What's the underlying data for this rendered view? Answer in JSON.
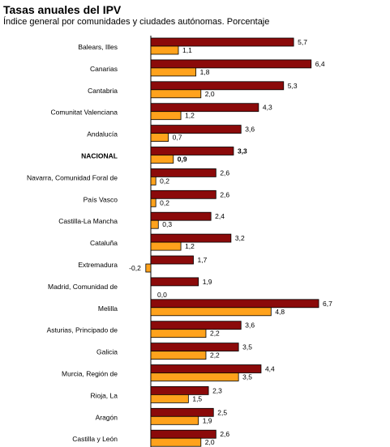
{
  "title": "Tasas anuales del IPV",
  "subtitle": "Índice general por comunidades y ciudades autónomas. Porcentaje",
  "colors": {
    "series1": "#8b0a0a",
    "series2": "#ffa21c"
  },
  "chart_data": {
    "type": "bar",
    "orientation": "horizontal",
    "categories": [
      "Balears, Illes",
      "Canarias",
      "Cantabria",
      "Comunitat Valenciana",
      "Andalucía",
      "NACIONAL",
      "Navarra, Comunidad Foral de",
      "País Vasco",
      "Castilla-La Mancha",
      "Cataluña",
      "Extremadura",
      "Madrid, Comunidad de",
      "Melilla",
      "Asturias, Principado de",
      "Galicia",
      "Murcia, Región de",
      "Rioja, La",
      "Aragón",
      "Castilla y León"
    ],
    "series": [
      {
        "values": [
          5.7,
          6.4,
          5.3,
          4.3,
          3.6,
          3.3,
          2.6,
          2.6,
          2.4,
          3.2,
          1.7,
          1.9,
          6.7,
          3.6,
          3.5,
          4.4,
          2.3,
          2.5,
          2.6
        ]
      },
      {
        "values": [
          1.1,
          1.8,
          2.0,
          1.2,
          0.7,
          0.9,
          0.2,
          0.2,
          0.3,
          1.2,
          -0.2,
          0.0,
          4.8,
          2.2,
          2.2,
          3.5,
          1.5,
          1.9,
          2.0
        ]
      }
    ],
    "value_labels": [
      [
        "5,7",
        "6,4",
        "5,3",
        "4,3",
        "3,6",
        "3,3",
        "2,6",
        "2,6",
        "2,4",
        "3,2",
        "1,7",
        "1,9",
        "6,7",
        "3,6",
        "3,5",
        "4,4",
        "2,3",
        "2,5",
        "2,6"
      ],
      [
        "1,1",
        "1,8",
        "2,0",
        "1,2",
        "0,7",
        "0,9",
        "0,2",
        "0,2",
        "0,3",
        "1,2",
        "-0,2",
        "0,0",
        "4,8",
        "2,2",
        "2,2",
        "3,5",
        "1,5",
        "1,9",
        "2,0"
      ]
    ],
    "bold_category": "NACIONAL",
    "grid": false
  }
}
